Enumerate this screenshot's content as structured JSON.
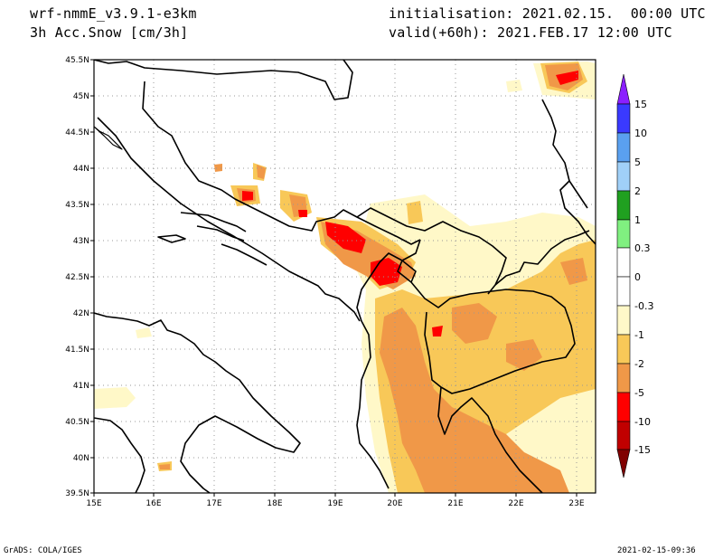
{
  "header": {
    "model": "wrf-nmmE_v3.9.1-e3km",
    "field": "3h Acc.Snow [cm/3h]",
    "init": "initialisation: 2021.02.15.  00:00 UTC",
    "valid": "valid(+60h): 2021.FEB.17 12:00 UTC"
  },
  "map": {
    "lon_labels": [
      "15E",
      "16E",
      "17E",
      "18E",
      "19E",
      "20E",
      "21E",
      "22E",
      "23E"
    ],
    "lat_labels": [
      "45.5N",
      "45N",
      "44.5N",
      "44N",
      "43.5N",
      "43N",
      "42.5N",
      "42N",
      "41.5N",
      "41N",
      "40.5N",
      "40N",
      "39.5N"
    ],
    "lon_range": [
      15,
      23.25
    ],
    "lat_range": [
      39.5,
      45.5
    ]
  },
  "colorbar": {
    "labels": [
      "15",
      "10",
      "5",
      "2",
      "1",
      "0.3",
      "0",
      "-0.3",
      "-1",
      "-2",
      "-5",
      "-10",
      "-15"
    ],
    "colors": [
      "#8b1fff",
      "#3a3aff",
      "#5aa0f0",
      "#a0d0f8",
      "#20a020",
      "#80f080",
      "#ffffff",
      "#fff8c8",
      "#f8c858",
      "#f09848",
      "#ff0000",
      "#c00000",
      "#800000"
    ]
  },
  "footer": {
    "left": "GrADS: COLA/IGES",
    "right": "2021-02-15-09:36"
  }
}
